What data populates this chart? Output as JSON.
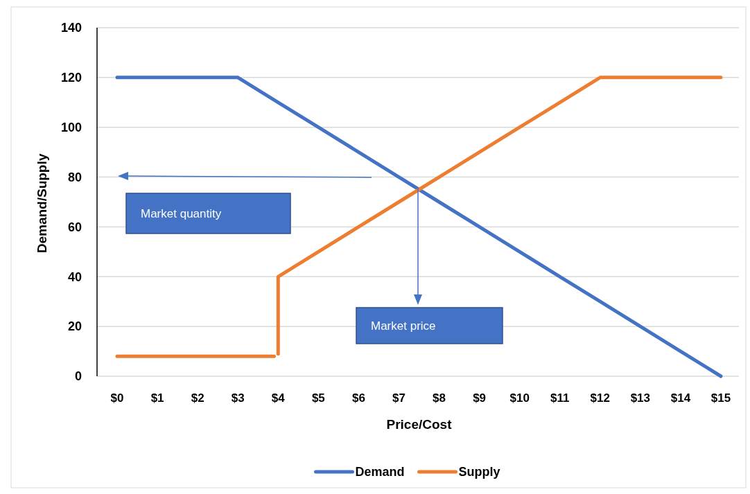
{
  "chart_data": {
    "type": "line",
    "xlabel": "Price/Cost",
    "ylabel": "Demand/Supply",
    "xlim": [
      -0.5,
      15.5
    ],
    "ylim": [
      0,
      140
    ],
    "xticks": [
      {
        "value": 0,
        "label": "$0"
      },
      {
        "value": 1,
        "label": "$1"
      },
      {
        "value": 2,
        "label": "$2"
      },
      {
        "value": 3,
        "label": "$3"
      },
      {
        "value": 4,
        "label": "$4"
      },
      {
        "value": 5,
        "label": "$5"
      },
      {
        "value": 6,
        "label": "$6"
      },
      {
        "value": 7,
        "label": "$7"
      },
      {
        "value": 8,
        "label": "$8"
      },
      {
        "value": 9,
        "label": "$9"
      },
      {
        "value": 10,
        "label": "$10"
      },
      {
        "value": 11,
        "label": "$11"
      },
      {
        "value": 12,
        "label": "$12"
      },
      {
        "value": 13,
        "label": "$13"
      },
      {
        "value": 14,
        "label": "$14"
      },
      {
        "value": 15,
        "label": "$15"
      }
    ],
    "yticks": [
      0,
      20,
      40,
      60,
      80,
      100,
      120,
      140
    ],
    "grid": "y",
    "legend": "bottom",
    "series": [
      {
        "name": "Demand",
        "color": "#4472c4",
        "x": [
          0,
          1,
          2,
          3,
          4,
          5,
          6,
          7,
          8,
          9,
          10,
          11,
          12,
          13,
          14,
          15
        ],
        "values": [
          120,
          120,
          120,
          120,
          110,
          100,
          90,
          80,
          70,
          60,
          50,
          40,
          30,
          20,
          10,
          0
        ]
      },
      {
        "name": "Supply",
        "color": "#ed7d31",
        "x": [
          0,
          3.9,
          3.95,
          4,
          4,
          5,
          6,
          7,
          8,
          9,
          10,
          11,
          12,
          13,
          14,
          15
        ],
        "values": [
          8,
          8,
          null,
          9,
          40,
          50,
          60,
          70,
          80,
          90,
          100,
          110,
          120,
          120,
          120,
          120
        ]
      }
    ],
    "annotations": [
      "Market quantity",
      "Market price"
    ]
  }
}
